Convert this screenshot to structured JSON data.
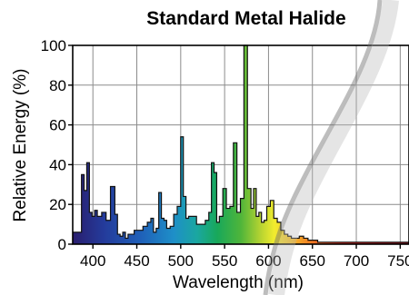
{
  "chart_data": {
    "type": "area",
    "title": "Standard Metal Halide",
    "xlabel": "Wavelength (nm)",
    "ylabel": "Relative Energy (%)",
    "xlim": [
      377,
      760
    ],
    "ylim": [
      0,
      100
    ],
    "x_ticks": [
      400,
      450,
      500,
      550,
      600,
      650,
      700,
      750
    ],
    "y_ticks": [
      0,
      20,
      40,
      60,
      80,
      100
    ],
    "grid": true,
    "legend": "none",
    "fill": "visible-spectrum-gradient",
    "series": [
      {
        "x": [
          377,
          382,
          387,
          390,
          393,
          396,
          399,
          402,
          405,
          410,
          415,
          420,
          425,
          428,
          431,
          434,
          437,
          440,
          443,
          447,
          452,
          457,
          462,
          466,
          469,
          472,
          475,
          478,
          481,
          484,
          488,
          492,
          496,
          500,
          503,
          506,
          509,
          513,
          518,
          523,
          528,
          532,
          535,
          538,
          541,
          544,
          548,
          552,
          556,
          560,
          564,
          568,
          572,
          576,
          580,
          583,
          586,
          589,
          592,
          595,
          598,
          602,
          606,
          610,
          614,
          618,
          622,
          626,
          630,
          635,
          640,
          645,
          650,
          656,
          662,
          668,
          674,
          680,
          686,
          692,
          698,
          704,
          710,
          716,
          722,
          728,
          734,
          740,
          746,
          752,
          756,
          760
        ],
        "values": [
          6,
          6,
          35,
          27,
          41,
          16,
          14,
          17,
          14,
          16,
          12,
          29,
          15,
          5,
          4,
          6,
          3,
          5,
          5,
          7,
          7,
          9,
          11,
          13,
          6,
          8,
          26,
          13,
          12,
          8,
          9,
          15,
          19,
          54,
          24,
          13,
          14,
          14,
          10,
          10,
          12,
          16,
          41,
          36,
          11,
          14,
          28,
          18,
          19,
          51,
          16,
          23,
          100,
          28,
          18,
          28,
          14,
          16,
          11,
          12,
          19,
          22,
          13,
          11,
          7,
          5,
          4,
          3,
          3,
          4,
          3,
          2,
          2,
          1,
          1,
          1,
          1,
          1,
          1,
          1,
          1,
          1,
          1,
          1,
          1,
          1,
          1,
          1,
          1,
          1,
          1,
          1
        ]
      }
    ]
  }
}
